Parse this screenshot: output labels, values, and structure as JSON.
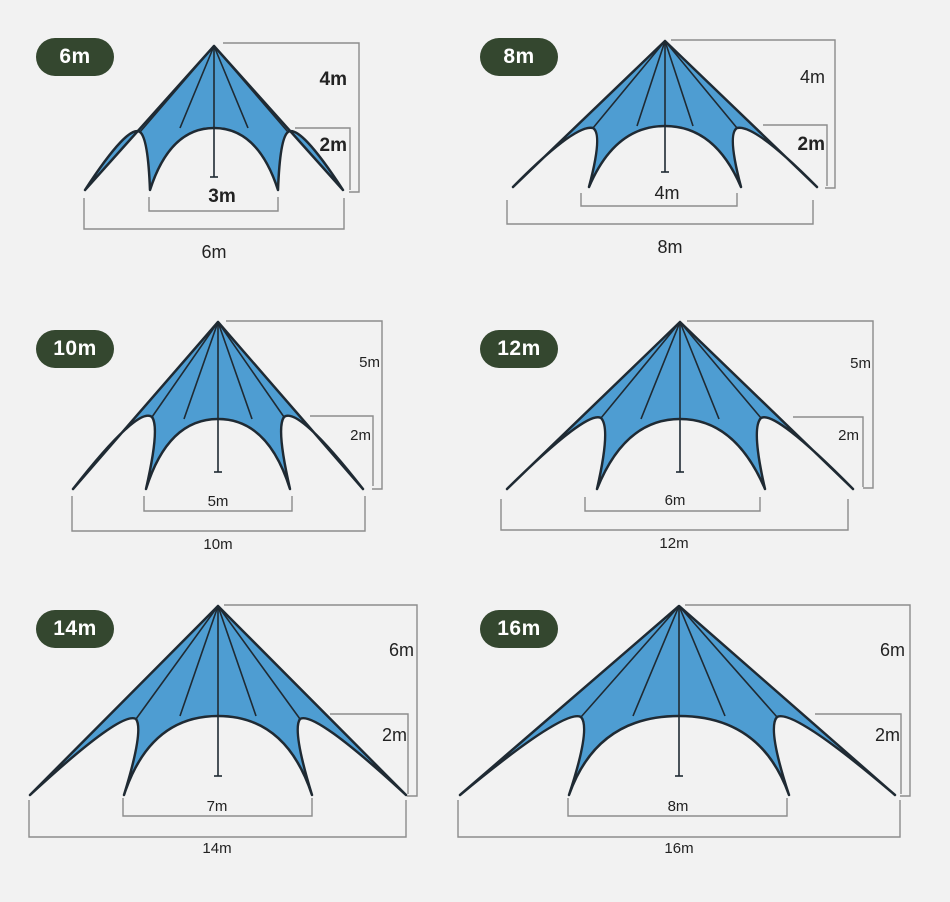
{
  "colors": {
    "canvas": "#f2f2f2",
    "tent_fill": "#4e9dd2",
    "tent_stroke": "#1f2a33",
    "dimension_line": "#8c8c8c",
    "badge_bg": "#34472f",
    "badge_text": "#ffffff"
  },
  "tents": [
    {
      "badge": "6m",
      "total_width": "6m",
      "inner_width": "3m",
      "total_height": "4m",
      "arch_height": "2m"
    },
    {
      "badge": "8m",
      "total_width": "8m",
      "inner_width": "4m",
      "total_height": "4m",
      "arch_height": "2m"
    },
    {
      "badge": "10m",
      "total_width": "10m",
      "inner_width": "5m",
      "total_height": "5m",
      "arch_height": "2m"
    },
    {
      "badge": "12m",
      "total_width": "12m",
      "inner_width": "6m",
      "total_height": "5m",
      "arch_height": "2m"
    },
    {
      "badge": "14m",
      "total_width": "14m",
      "inner_width": "7m",
      "total_height": "6m",
      "arch_height": "2m"
    },
    {
      "badge": "16m",
      "total_width": "16m",
      "inner_width": "8m",
      "total_height": "6m",
      "arch_height": "2m"
    }
  ]
}
